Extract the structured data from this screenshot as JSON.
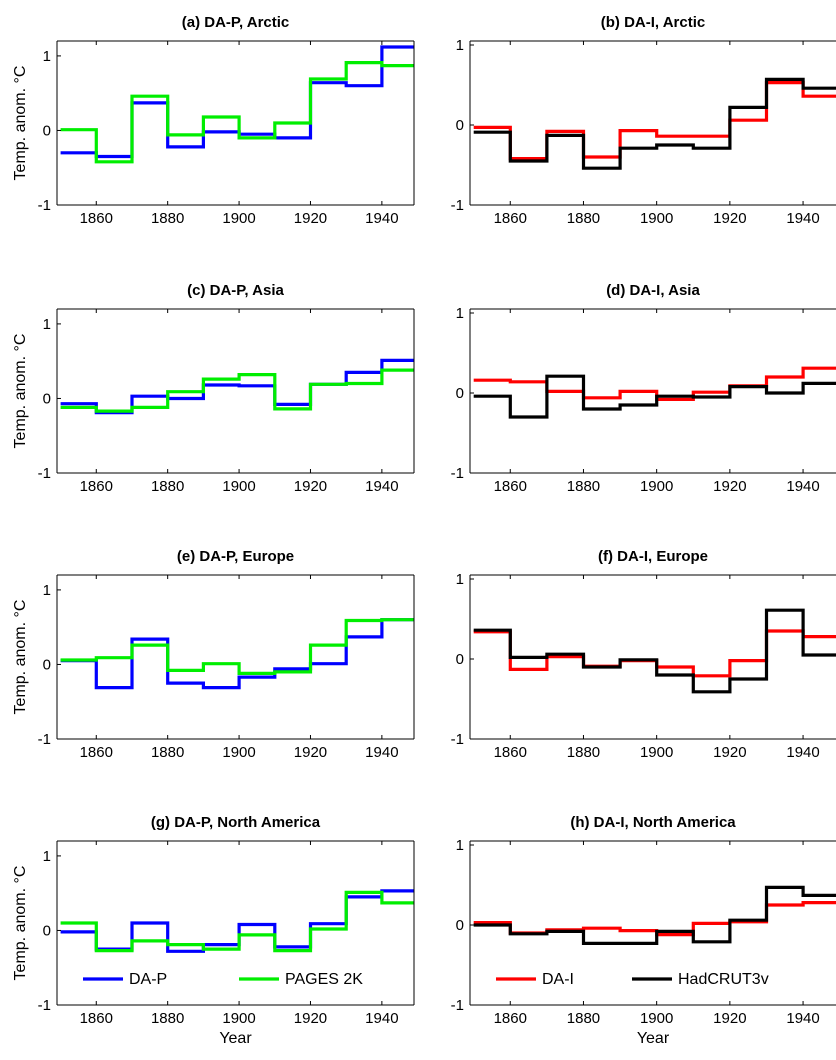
{
  "figure": {
    "ylabel": "Temp. anom. °C",
    "xlabel": "Year",
    "xticks": [
      1860,
      1880,
      1900,
      1920,
      1940
    ],
    "colors": {
      "DA-P": "#0000ff",
      "PAGES 2K": "#00ee00",
      "DA-I": "#ff0000",
      "HadCRUT3v": "#000000"
    }
  },
  "chart_data": [
    {
      "type": "line",
      "title": "(a) DA-P, Arctic",
      "x": [
        1850,
        1860,
        1870,
        1880,
        1890,
        1900,
        1910,
        1920,
        1930,
        1940
      ],
      "xlim": [
        1849,
        1949
      ],
      "ylim": [
        -1,
        1.2
      ],
      "yticks": [
        -1,
        0,
        1
      ],
      "step": "post",
      "series": [
        {
          "name": "DA-P",
          "color": "#0000ff",
          "values": [
            -0.3,
            -0.35,
            0.37,
            -0.22,
            -0.02,
            -0.05,
            -0.1,
            0.64,
            0.6,
            1.12
          ]
        },
        {
          "name": "PAGES 2K",
          "color": "#00ee00",
          "values": [
            0.01,
            -0.42,
            0.46,
            -0.06,
            0.18,
            -0.1,
            0.1,
            0.69,
            0.91,
            0.87
          ]
        }
      ]
    },
    {
      "type": "line",
      "title": "(b) DA-I, Arctic",
      "x": [
        1850,
        1860,
        1870,
        1880,
        1890,
        1900,
        1910,
        1920,
        1930,
        1940
      ],
      "xlim": [
        1849,
        1949
      ],
      "ylim": [
        -1,
        1.05
      ],
      "yticks": [
        -1,
        0,
        1
      ],
      "step": "post",
      "series": [
        {
          "name": "DA-I",
          "color": "#ff0000",
          "values": [
            -0.03,
            -0.42,
            -0.08,
            -0.4,
            -0.07,
            -0.14,
            -0.14,
            0.06,
            0.53,
            0.36
          ]
        },
        {
          "name": "HadCRUT3v",
          "color": "#000000",
          "values": [
            -0.09,
            -0.45,
            -0.13,
            -0.54,
            -0.29,
            -0.25,
            -0.29,
            0.22,
            0.57,
            0.46
          ]
        }
      ]
    },
    {
      "type": "line",
      "title": "(c) DA-P, Asia",
      "x": [
        1850,
        1860,
        1870,
        1880,
        1890,
        1900,
        1910,
        1920,
        1930,
        1940
      ],
      "xlim": [
        1849,
        1949
      ],
      "ylim": [
        -1,
        1.2
      ],
      "yticks": [
        -1,
        0,
        1
      ],
      "step": "post",
      "series": [
        {
          "name": "DA-P",
          "color": "#0000ff",
          "values": [
            -0.07,
            -0.19,
            0.03,
            0.0,
            0.18,
            0.17,
            -0.08,
            0.19,
            0.35,
            0.51
          ]
        },
        {
          "name": "PAGES 2K",
          "color": "#00ee00",
          "values": [
            -0.12,
            -0.17,
            -0.12,
            0.09,
            0.26,
            0.32,
            -0.14,
            0.19,
            0.2,
            0.38
          ]
        }
      ]
    },
    {
      "type": "line",
      "title": "(d) DA-I, Asia",
      "x": [
        1850,
        1860,
        1870,
        1880,
        1890,
        1900,
        1910,
        1920,
        1930,
        1940
      ],
      "xlim": [
        1849,
        1949
      ],
      "ylim": [
        -1,
        1.05
      ],
      "yticks": [
        -1,
        0,
        1
      ],
      "step": "post",
      "series": [
        {
          "name": "DA-I",
          "color": "#ff0000",
          "values": [
            0.16,
            0.14,
            0.02,
            -0.06,
            0.02,
            -0.08,
            0.01,
            0.09,
            0.2,
            0.31
          ]
        },
        {
          "name": "HadCRUT3v",
          "color": "#000000",
          "values": [
            -0.04,
            -0.3,
            0.21,
            -0.2,
            -0.15,
            -0.04,
            -0.05,
            0.08,
            0.0,
            0.12
          ]
        }
      ]
    },
    {
      "type": "line",
      "title": "(e) DA-P, Europe",
      "x": [
        1850,
        1860,
        1870,
        1880,
        1890,
        1900,
        1910,
        1920,
        1930,
        1940
      ],
      "xlim": [
        1849,
        1949
      ],
      "ylim": [
        -1,
        1.2
      ],
      "yticks": [
        -1,
        0,
        1
      ],
      "step": "post",
      "series": [
        {
          "name": "DA-P",
          "color": "#0000ff",
          "values": [
            0.05,
            -0.31,
            0.34,
            -0.25,
            -0.31,
            -0.17,
            -0.06,
            0.01,
            0.37,
            0.6
          ]
        },
        {
          "name": "PAGES 2K",
          "color": "#00ee00",
          "values": [
            0.06,
            0.09,
            0.26,
            -0.08,
            0.01,
            -0.12,
            -0.1,
            0.26,
            0.59,
            0.6
          ]
        }
      ]
    },
    {
      "type": "line",
      "title": "(f) DA-I, Europe",
      "x": [
        1850,
        1860,
        1870,
        1880,
        1890,
        1900,
        1910,
        1920,
        1930,
        1940
      ],
      "xlim": [
        1849,
        1949
      ],
      "ylim": [
        -1,
        1.05
      ],
      "yticks": [
        -1,
        0,
        1
      ],
      "step": "post",
      "series": [
        {
          "name": "DA-I",
          "color": "#ff0000",
          "values": [
            0.34,
            -0.13,
            0.03,
            -0.09,
            -0.02,
            -0.1,
            -0.21,
            -0.02,
            0.35,
            0.28
          ]
        },
        {
          "name": "HadCRUT3v",
          "color": "#000000",
          "values": [
            0.36,
            0.02,
            0.06,
            -0.1,
            -0.01,
            -0.2,
            -0.41,
            -0.25,
            0.61,
            0.05
          ]
        }
      ]
    },
    {
      "type": "line",
      "title": "(g) DA-P, North America",
      "x": [
        1850,
        1860,
        1870,
        1880,
        1890,
        1900,
        1910,
        1920,
        1930,
        1940
      ],
      "xlim": [
        1849,
        1949
      ],
      "ylim": [
        -1,
        1.2
      ],
      "yticks": [
        -1,
        0,
        1
      ],
      "step": "post",
      "series": [
        {
          "name": "DA-P",
          "color": "#0000ff",
          "values": [
            -0.02,
            -0.25,
            0.1,
            -0.28,
            -0.19,
            0.08,
            -0.22,
            0.09,
            0.45,
            0.53
          ]
        },
        {
          "name": "PAGES 2K",
          "color": "#00ee00",
          "values": [
            0.1,
            -0.27,
            -0.14,
            -0.19,
            -0.25,
            -0.06,
            -0.27,
            0.02,
            0.51,
            0.37
          ]
        }
      ],
      "legend": {
        "entries": [
          "DA-P",
          "PAGES 2K"
        ],
        "placement": "bottom-left"
      }
    },
    {
      "type": "line",
      "title": "(h) DA-I, North America",
      "x": [
        1850,
        1860,
        1870,
        1880,
        1890,
        1900,
        1910,
        1920,
        1930,
        1940
      ],
      "xlim": [
        1849,
        1949
      ],
      "ylim": [
        -1,
        1.05
      ],
      "yticks": [
        -1,
        0,
        1
      ],
      "step": "post",
      "series": [
        {
          "name": "DA-I",
          "color": "#ff0000",
          "values": [
            0.03,
            -0.1,
            -0.06,
            -0.04,
            -0.07,
            -0.12,
            0.02,
            0.04,
            0.25,
            0.28
          ]
        },
        {
          "name": "HadCRUT3v",
          "color": "#000000",
          "values": [
            0.0,
            -0.11,
            -0.08,
            -0.23,
            -0.23,
            -0.08,
            -0.21,
            0.06,
            0.47,
            0.37
          ]
        }
      ],
      "legend": {
        "entries": [
          "DA-I",
          "HadCRUT3v"
        ],
        "placement": "bottom-left"
      }
    }
  ]
}
